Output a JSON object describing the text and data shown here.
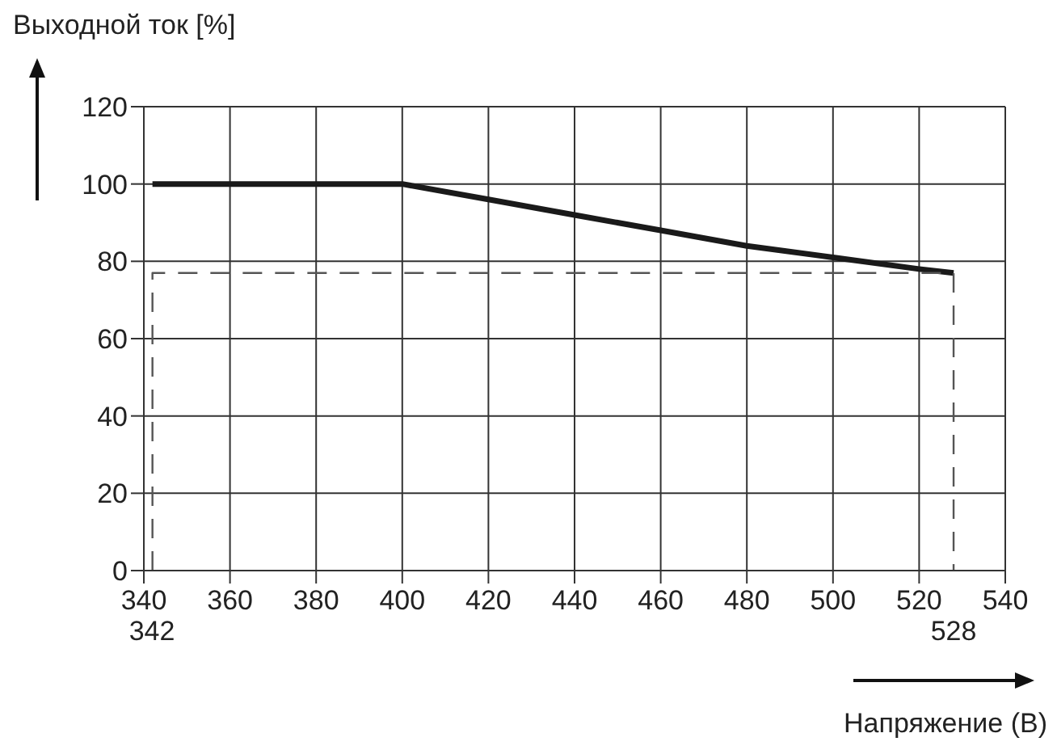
{
  "chart_data": {
    "type": "line",
    "xlabel": "Напряжение (В)",
    "ylabel": "Выходной ток [%]",
    "xlim": [
      340,
      540
    ],
    "xticks": [
      340,
      360,
      380,
      400,
      420,
      440,
      460,
      480,
      500,
      520,
      540
    ],
    "annotations": [
      "342",
      "528"
    ],
    "ylim": [
      0,
      120
    ],
    "yticks": [
      0,
      20,
      40,
      60,
      80,
      100,
      120
    ],
    "grid": true,
    "marker": "none",
    "series": [
      {
        "color": "#1a1a1a",
        "line_style": "solid",
        "x": [
          342,
          400,
          420,
          440,
          460,
          480,
          500,
          520,
          528
        ],
        "values": [
          100,
          100,
          96,
          92,
          88,
          84,
          81,
          78,
          77
        ]
      },
      {
        "color": "#555555",
        "line_style": "dashed",
        "x": [
          342,
          342,
          528,
          528
        ],
        "values": [
          0,
          77,
          77,
          0
        ]
      }
    ]
  }
}
